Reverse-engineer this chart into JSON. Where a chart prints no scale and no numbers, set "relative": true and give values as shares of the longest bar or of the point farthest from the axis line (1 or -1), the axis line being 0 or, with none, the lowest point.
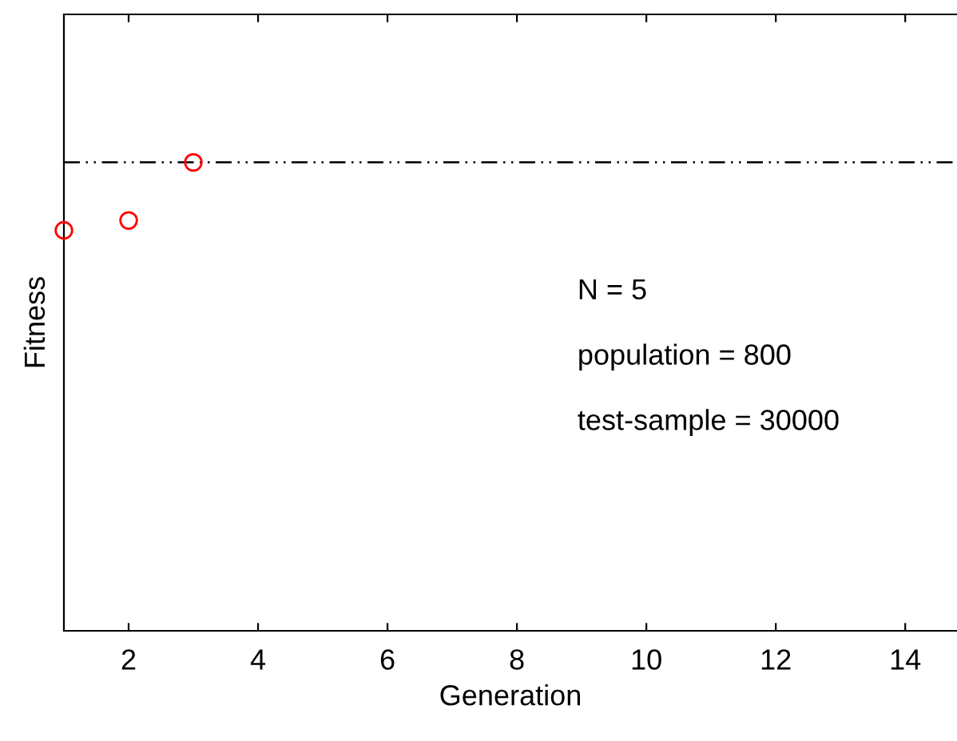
{
  "chart_data": {
    "type": "scatter",
    "xlabel": "Generation",
    "ylabel": "Fitness",
    "relative": true,
    "x": [
      1,
      2,
      3
    ],
    "series": [
      {
        "color": "#ff0000",
        "values": [
          0.855,
          0.876,
          1.0
        ]
      }
    ],
    "marker": "circle",
    "xlim": [
      1,
      14.8
    ],
    "xticks": [
      2,
      4,
      6,
      8,
      10,
      12,
      14
    ],
    "ref_lines": [
      {
        "axis": "y",
        "value": 1.0,
        "color": "#000000",
        "line_style": "dashdotdot"
      }
    ],
    "annotations": [
      "N = 5",
      "population = 800",
      "test-sample = 30000"
    ],
    "grid": false,
    "legend": false
  }
}
